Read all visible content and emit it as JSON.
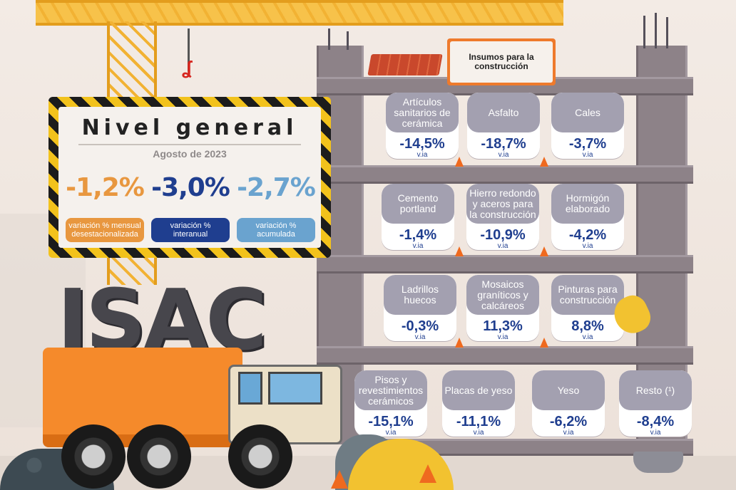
{
  "board": {
    "title": "Nivel general",
    "date": "Agosto de 2023",
    "metrics": [
      {
        "value": "-1,2%",
        "label": "variación % mensual desestacionalizada",
        "color": "#e8973f",
        "label_bg": "#e8973f"
      },
      {
        "value": "-3,0%",
        "label": "variación % interanual",
        "color": "#1f3e8f",
        "label_bg": "#1f3e8f"
      },
      {
        "value": "-2,7%",
        "label": "variación % acumulada",
        "color": "#6aa3cf",
        "label_bg": "#6aa3cf"
      }
    ]
  },
  "logo": {
    "text": "ISAC"
  },
  "insumos_title": "Insumos para la construcción",
  "cards": [
    {
      "name": "Artículos sanitarios de cerámica",
      "value": "-14,5%",
      "unit": "v.ia"
    },
    {
      "name": "Asfalto",
      "value": "-18,7%",
      "unit": "v.ia"
    },
    {
      "name": "Cales",
      "value": "-3,7%",
      "unit": "v.ia"
    },
    {
      "name": "Cemento portland",
      "value": "-1,4%",
      "unit": "v.ia"
    },
    {
      "name": "Hierro redondo y aceros para la construcción",
      "value": "-10,9%",
      "unit": "v.ia"
    },
    {
      "name": "Hormigón elaborado",
      "value": "-4,2%",
      "unit": "v.ia"
    },
    {
      "name": "Ladrillos huecos",
      "value": "-0,3%",
      "unit": "v.ia"
    },
    {
      "name": "Mosaicos graníticos y calcáreos",
      "value": "11,3%",
      "unit": "v.ia"
    },
    {
      "name": "Pinturas para construcción",
      "value": "8,8%",
      "unit": "v.ia"
    },
    {
      "name": "Pisos y revestimientos cerámicos",
      "value": "-15,1%",
      "unit": "v.ia"
    },
    {
      "name": "Placas de yeso",
      "value": "-11,1%",
      "unit": "v.ia"
    },
    {
      "name": "Yeso",
      "value": "-6,2%",
      "unit": "v.ia"
    },
    {
      "name": "Resto (¹)",
      "value": "-8,4%",
      "unit": "v.ia"
    }
  ]
}
